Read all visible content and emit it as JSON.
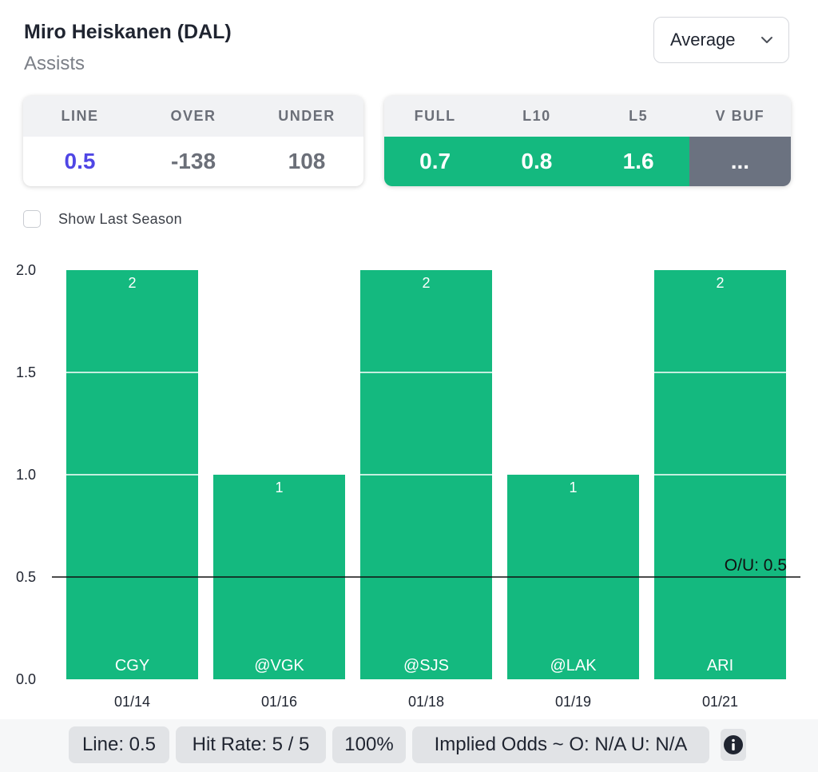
{
  "player": {
    "name": "Miro Heiskanen (DAL)",
    "stat": "Assists"
  },
  "dropdown": {
    "selected": "Average"
  },
  "odds": {
    "headers": [
      "LINE",
      "OVER",
      "UNDER"
    ],
    "values": [
      "0.5",
      "-138",
      "108"
    ]
  },
  "averages": {
    "headers": [
      "FULL",
      "L10",
      "L5",
      "V BUF"
    ],
    "values": [
      "0.7",
      "0.8",
      "1.6",
      "..."
    ]
  },
  "options": {
    "show_last_season_label": "Show Last Season",
    "show_last_season_checked": false
  },
  "chart_data": {
    "type": "bar",
    "categories": [
      "01/14",
      "01/16",
      "01/18",
      "01/19",
      "01/21"
    ],
    "opponents": [
      "CGY",
      "@VGK",
      "@SJS",
      "@LAK",
      "ARI"
    ],
    "values": [
      2,
      1,
      2,
      1,
      2
    ],
    "ylim": [
      0,
      2
    ],
    "yticks": [
      "0.0",
      "0.5",
      "1.0",
      "1.5",
      "2.0"
    ],
    "line_value": 0.5,
    "line_label": "O/U: 0.5",
    "title": "",
    "xlabel": "",
    "ylabel": ""
  },
  "footer": {
    "line": "Line: 0.5",
    "hit_rate": "Hit Rate: 5 / 5",
    "percent": "100%",
    "implied_odds": "Implied Odds ~ O: N/A U: N/A"
  },
  "colors": {
    "bar": "#14b97f",
    "gridline": "#ffffff",
    "ou_line": "#111111",
    "over": "#1bb27a",
    "under": "#ef4444",
    "line_value": "#4f46e5",
    "neutral_cell": "#6b7280"
  },
  "icons": {
    "dropdown": "chevron-down-icon",
    "info": "info-icon",
    "checkbox": "checkbox-icon"
  }
}
